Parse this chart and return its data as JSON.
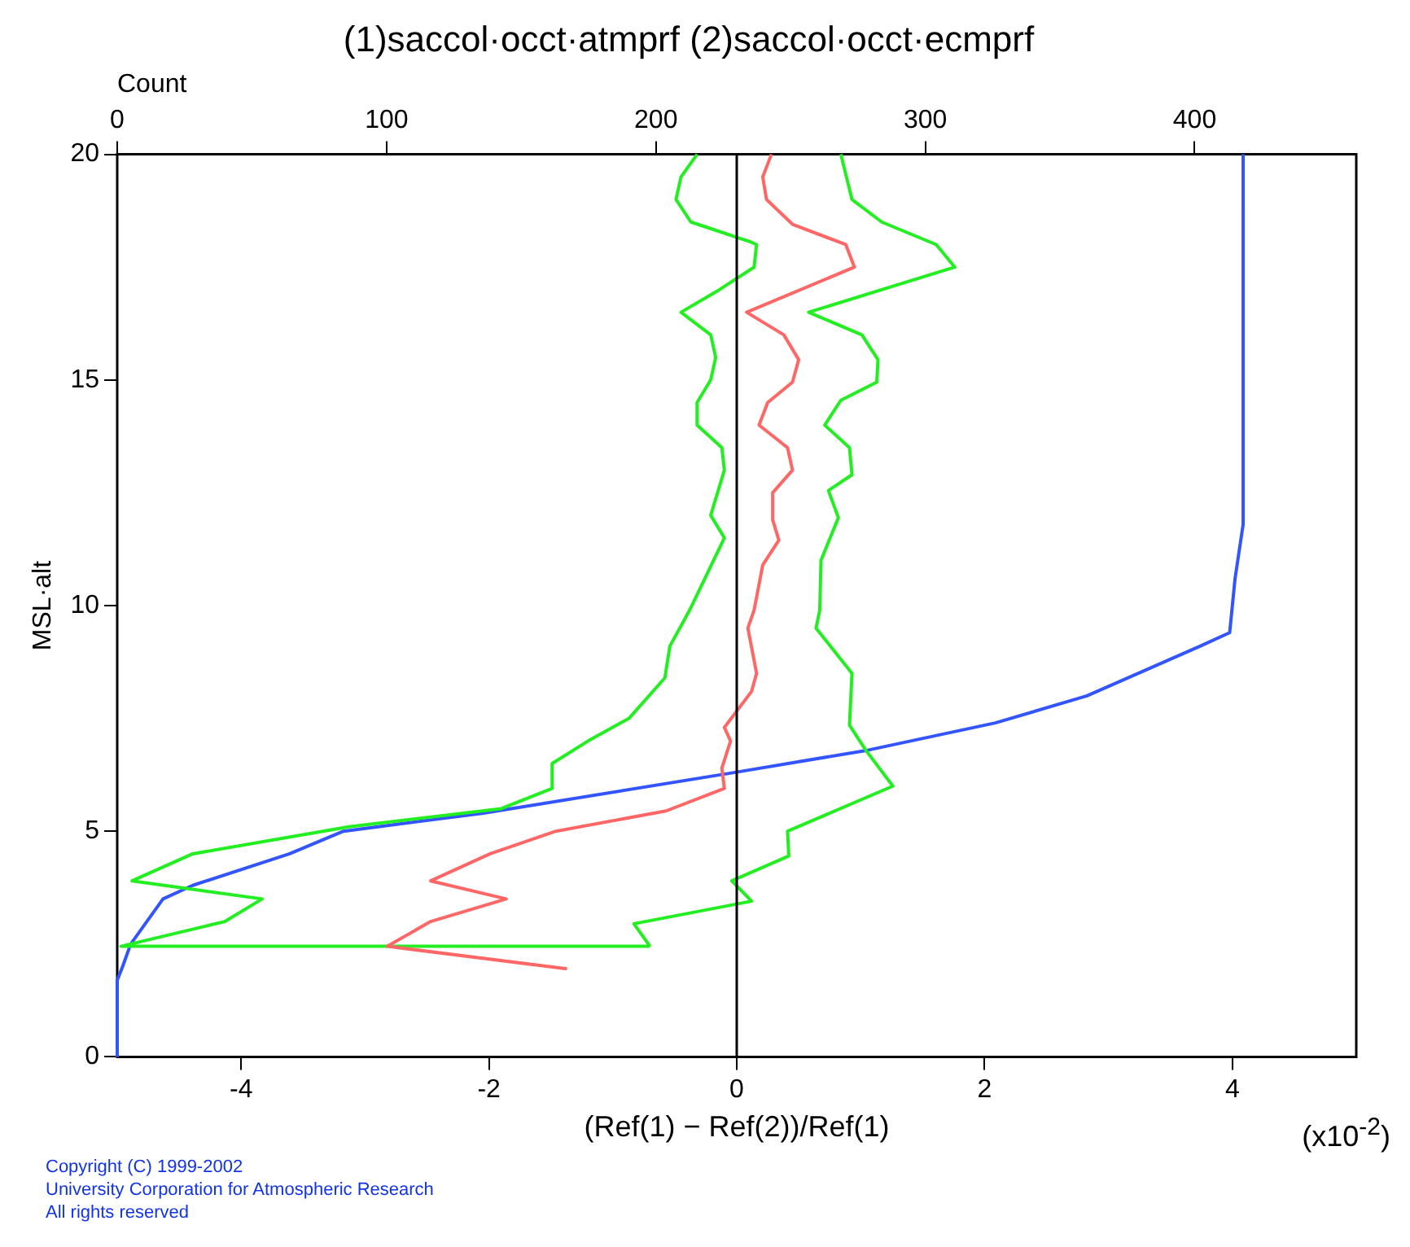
{
  "chart_data": {
    "type": "line",
    "title": "(1)saccol·occt·atmprf (2)saccol·occt·ecmprf",
    "xlabel": "(Ref(1) − Ref(2))/Ref(1)",
    "x2label": "Count",
    "ylabel": "MSL·alt",
    "xlim": [
      -5,
      5
    ],
    "xticks": [
      -4,
      -2,
      0,
      2,
      4
    ],
    "x2lim": [
      0,
      460
    ],
    "x2ticks": [
      0,
      100,
      200,
      300,
      400
    ],
    "ylim": [
      0,
      20
    ],
    "yticks": [
      0,
      5,
      10,
      15,
      20
    ],
    "grid": false,
    "legend": false,
    "marker": "none",
    "line_style": "solid",
    "ref_lines": [
      {
        "axis": "x",
        "value": 0,
        "color": "#000000"
      }
    ],
    "annotations": [
      "Copyright (C) 1999-2002",
      "University Corporation for Atmospheric Research",
      "All rights reserved",
      "(x10$^{-2}$)"
    ],
    "series": [
      {
        "color": "#ff6666",
        "x": [
          -1.37,
          -2.82,
          -2.47,
          -1.86,
          -2.47,
          -1.99,
          -1.46,
          -0.57,
          -0.1,
          -0.12,
          -0.05,
          -0.1,
          0.12,
          0.16,
          0.09,
          0.14,
          0.21,
          0.34,
          0.29,
          0.29,
          0.45,
          0.41,
          0.18,
          0.25,
          0.45,
          0.5,
          0.38,
          0.08,
          0.95,
          0.88,
          0.45,
          0.24,
          0.21,
          0.28
        ],
        "values": [
          1.95,
          2.45,
          3.0,
          3.5,
          3.9,
          4.5,
          5.0,
          5.45,
          5.95,
          6.4,
          7.0,
          7.3,
          8.1,
          8.5,
          9.5,
          9.9,
          10.9,
          11.45,
          11.9,
          12.5,
          13.0,
          13.5,
          14.0,
          14.5,
          14.95,
          15.45,
          16.0,
          16.5,
          17.5,
          18.0,
          18.45,
          19.0,
          19.5,
          20
        ]
      },
      {
        "color": "#22ee22",
        "x": [
          -0.7,
          -4.97,
          -4.13,
          -3.83,
          -4.88,
          -4.39,
          -3.13,
          -1.9,
          -1.49,
          -1.49,
          -1.2,
          -0.87,
          -0.58,
          -0.54,
          -0.38,
          -0.1,
          -0.21,
          -0.1,
          -0.12,
          -0.32,
          -0.32,
          -0.21,
          -0.17,
          -0.21,
          -0.45,
          -0.14,
          0.14,
          0.16,
          0.12,
          -0.37,
          -0.49,
          -0.45,
          -0.32
        ],
        "values": [
          2.45,
          2.45,
          3.0,
          3.5,
          3.9,
          4.5,
          5.1,
          5.5,
          5.95,
          6.5,
          7.0,
          7.5,
          8.4,
          9.1,
          9.9,
          11.5,
          12.0,
          13.0,
          13.5,
          14.0,
          14.5,
          15.0,
          15.5,
          16.0,
          16.5,
          17.0,
          17.5,
          18.0,
          18.05,
          18.5,
          19.0,
          19.5,
          20
        ]
      },
      {
        "color": "#22ee22",
        "x": [
          -0.7,
          -0.83,
          0.12,
          -0.04,
          0.42,
          0.41,
          1.26,
          1.04,
          0.91,
          0.93,
          0.64,
          0.67,
          0.68,
          0.82,
          0.74,
          0.93,
          0.91,
          0.71,
          0.84,
          1.13,
          1.14,
          1.01,
          0.58,
          1.76,
          1.61,
          1.17,
          0.93,
          0.84
        ],
        "values": [
          2.45,
          2.95,
          3.45,
          3.9,
          4.45,
          5.0,
          6.0,
          6.8,
          7.35,
          8.5,
          9.5,
          9.9,
          11.0,
          11.95,
          12.55,
          12.9,
          13.5,
          14.0,
          14.55,
          14.95,
          15.45,
          16.0,
          16.5,
          17.5,
          18.0,
          18.5,
          19.0,
          20
        ]
      },
      {
        "color": "#3355ff",
        "axis": "x2",
        "x": [
          0,
          0,
          2,
          5,
          17,
          28,
          64,
          84,
          136,
          229,
          279,
          326,
          360,
          402,
          413,
          415,
          418,
          418
        ],
        "values": [
          0,
          1.7,
          2.0,
          2.5,
          3.5,
          3.8,
          4.5,
          5.0,
          5.4,
          6.3,
          6.8,
          7.4,
          8.0,
          9.1,
          9.4,
          10.6,
          11.8,
          20
        ]
      }
    ]
  }
}
